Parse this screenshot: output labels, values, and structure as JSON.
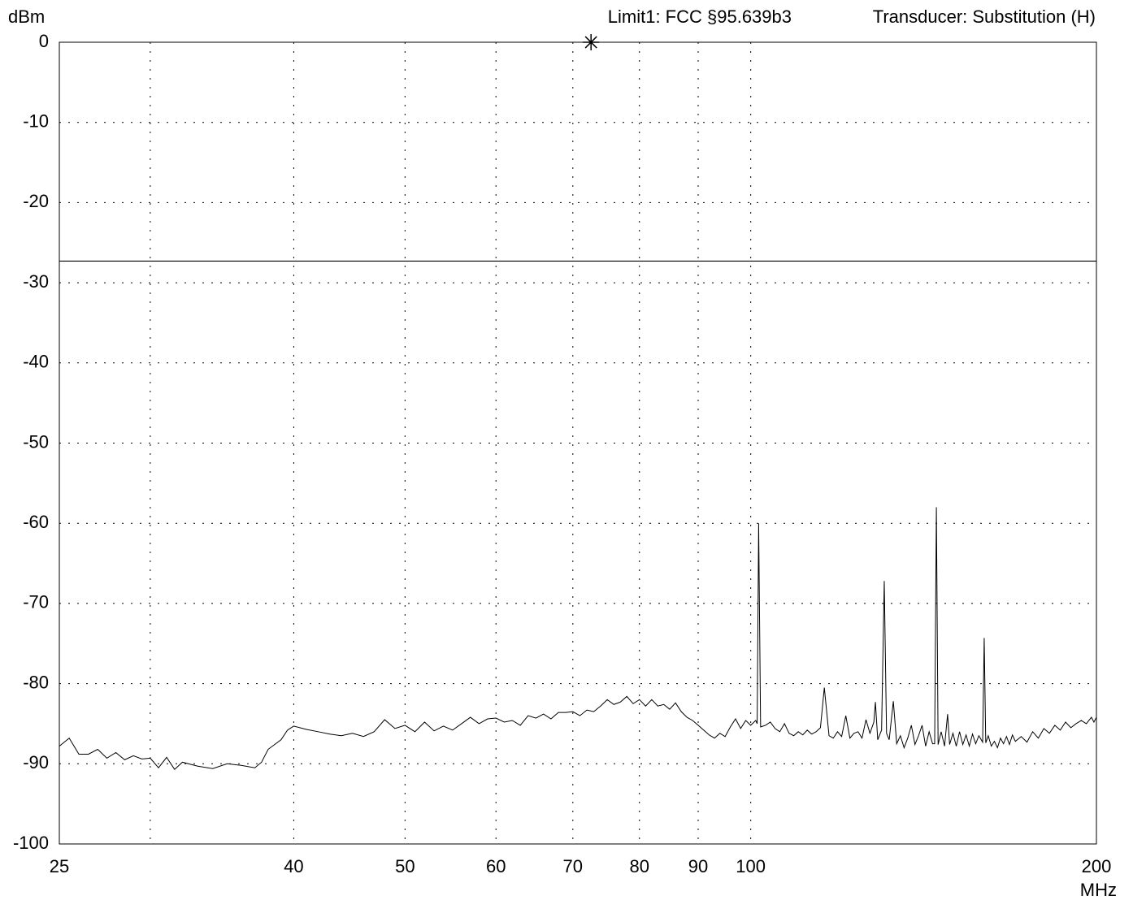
{
  "chart_data": {
    "type": "line",
    "ylabel": "dBm",
    "xlabel": "MHz",
    "annotations": [
      "Limit1: FCC §95.639b3",
      "Transducer: Substitution (H)"
    ],
    "xlim": [
      25,
      200
    ],
    "ylim": [
      -100,
      0
    ],
    "xscale": "log",
    "grid": true,
    "xticks": [
      25,
      {
        "value": 30,
        "label": null
      },
      40,
      50,
      60,
      70,
      80,
      90,
      100,
      200
    ],
    "yticks": [
      0,
      -10,
      -20,
      -30,
      -40,
      -50,
      -60,
      -70,
      -80,
      -90,
      -100
    ],
    "limit": -27.3,
    "marker": {
      "x": 72.6,
      "y": 0
    },
    "series": [
      {
        "color": "#000000",
        "x": [
          25,
          25.5,
          26,
          26.5,
          27,
          27.5,
          28,
          28.5,
          29,
          29.5,
          30,
          30.5,
          31,
          31.5,
          32,
          33,
          34,
          35,
          36,
          37,
          37.5,
          38,
          39,
          39.5,
          40,
          41,
          42,
          43,
          44,
          45,
          46,
          47,
          48,
          49,
          50,
          51,
          52,
          53,
          54,
          55,
          56,
          57,
          58,
          59,
          60,
          61,
          62,
          63,
          64,
          65,
          66,
          67,
          68,
          69,
          70,
          71,
          72,
          73,
          74,
          75,
          76,
          77,
          78,
          79,
          80,
          81,
          82,
          83,
          84,
          85,
          86,
          87,
          88,
          89,
          90,
          91,
          92,
          93,
          94,
          95,
          96,
          97,
          98,
          99,
          100,
          101,
          101.3,
          101.6,
          102,
          103,
          104,
          105,
          106,
          107,
          108,
          109,
          110,
          111,
          112,
          113,
          114,
          115,
          115.9,
          117,
          118,
          119,
          120,
          121,
          122,
          123,
          124,
          125,
          126,
          127,
          128,
          128.4,
          129,
          130,
          130.7,
          131.3,
          132,
          133.1,
          134,
          135,
          136,
          137,
          138,
          139,
          140,
          141,
          142,
          143,
          144,
          144.6,
          145.1,
          145.6,
          146.5,
          147.5,
          148.4,
          149,
          150,
          151,
          152,
          153,
          154,
          155,
          156,
          157,
          158,
          159.2,
          159.7,
          160.2,
          161,
          162,
          163,
          164,
          165,
          166,
          167,
          168,
          169,
          170,
          172,
          174,
          176,
          178,
          180,
          182,
          184,
          186,
          188,
          190,
          192,
          194,
          196,
          198,
          199,
          200
        ],
        "values": [
          -87.8,
          -86.8,
          -88.8,
          -88.8,
          -88.2,
          -89.3,
          -88.6,
          -89.5,
          -89.0,
          -89.4,
          -89.3,
          -90.5,
          -89.2,
          -90.7,
          -89.8,
          -90.3,
          -90.6,
          -90.0,
          -90.2,
          -90.5,
          -89.8,
          -88.2,
          -87.0,
          -85.8,
          -85.3,
          -85.7,
          -86.0,
          -86.3,
          -86.5,
          -86.2,
          -86.6,
          -86.0,
          -84.5,
          -85.6,
          -85.2,
          -86.0,
          -84.8,
          -85.9,
          -85.3,
          -85.8,
          -85.0,
          -84.2,
          -85.0,
          -84.4,
          -84.3,
          -84.8,
          -84.6,
          -85.2,
          -84.0,
          -84.3,
          -83.8,
          -84.4,
          -83.6,
          -83.6,
          -83.5,
          -84.0,
          -83.3,
          -83.5,
          -82.8,
          -82.0,
          -82.6,
          -82.3,
          -81.6,
          -82.5,
          -82.0,
          -82.8,
          -82.0,
          -82.8,
          -82.6,
          -83.2,
          -82.4,
          -83.5,
          -84.2,
          -84.6,
          -85.2,
          -85.8,
          -86.4,
          -86.8,
          -86.2,
          -86.6,
          -85.4,
          -84.4,
          -85.6,
          -84.6,
          -85.2,
          -84.6,
          -85.0,
          -60.0,
          -85.4,
          -85.2,
          -84.8,
          -85.6,
          -86.0,
          -85.0,
          -86.2,
          -86.5,
          -86.0,
          -86.4,
          -85.8,
          -86.3,
          -86.0,
          -85.5,
          -80.5,
          -86.5,
          -86.8,
          -86.0,
          -86.6,
          -84.0,
          -86.8,
          -86.2,
          -86.0,
          -86.8,
          -84.5,
          -86.2,
          -84.8,
          -82.3,
          -87.0,
          -85.8,
          -67.2,
          -86.2,
          -87.0,
          -82.2,
          -87.5,
          -86.5,
          -88.0,
          -86.8,
          -85.2,
          -87.6,
          -86.5,
          -85.2,
          -87.8,
          -86.0,
          -87.5,
          -87.5,
          -58.0,
          -87.6,
          -86.0,
          -87.8,
          -83.8,
          -87.6,
          -86.2,
          -87.8,
          -86.0,
          -87.6,
          -86.4,
          -87.8,
          -86.3,
          -87.5,
          -86.5,
          -87.3,
          -74.3,
          -87.4,
          -86.5,
          -87.8,
          -87.2,
          -88.0,
          -86.8,
          -87.5,
          -86.6,
          -87.6,
          -86.4,
          -87.2,
          -86.6,
          -87.3,
          -86.0,
          -86.8,
          -85.6,
          -86.2,
          -85.2,
          -85.8,
          -84.8,
          -85.5,
          -85.0,
          -84.6,
          -85.0,
          -84.2,
          -84.8,
          -84.2
        ]
      }
    ]
  }
}
